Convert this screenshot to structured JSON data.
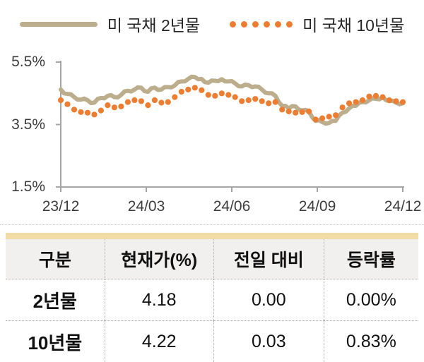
{
  "legend": {
    "series1_label": "미 국채 2년물",
    "series2_label": "미 국채 10년물"
  },
  "colors": {
    "series1": "#BCAD8C",
    "series2": "#ED7D31",
    "axis": "#A6A6A6",
    "table_accent": "#F0DCA4",
    "table_header_bg": "#F1F0EF",
    "dotted_border": "#A9A9A9",
    "text": "#1A1A1A"
  },
  "chart_data": {
    "type": "line",
    "title": "",
    "xlabel": "",
    "ylabel": "",
    "ylim": [
      1.5,
      5.5
    ],
    "grid": false,
    "legend_position": "top",
    "x_ticks": [
      "23/12",
      "24/03",
      "24/06",
      "24/09",
      "24/12"
    ],
    "y_ticks": [
      "5.5%",
      "3.5%",
      "1.5%"
    ],
    "y_tick_values": [
      5.5,
      3.5,
      1.5
    ],
    "series": [
      {
        "name": "미 국채 2년물",
        "style": "solid",
        "color": "#BCAD8C",
        "values": [
          4.62,
          4.5,
          4.48,
          4.47,
          4.38,
          4.3,
          4.3,
          4.33,
          4.28,
          4.19,
          4.2,
          4.32,
          4.35,
          4.34,
          4.42,
          4.44,
          4.38,
          4.37,
          4.45,
          4.56,
          4.58,
          4.56,
          4.62,
          4.69,
          4.68,
          4.57,
          4.55,
          4.66,
          4.68,
          4.61,
          4.62,
          4.7,
          4.7,
          4.69,
          4.75,
          4.86,
          4.88,
          4.88,
          4.96,
          5.03,
          5.02,
          4.95,
          4.96,
          4.86,
          4.84,
          4.91,
          4.9,
          4.89,
          4.95,
          4.88,
          4.88,
          4.89,
          4.82,
          4.73,
          4.72,
          4.78,
          4.76,
          4.7,
          4.72,
          4.71,
          4.62,
          4.52,
          4.5,
          4.5,
          4.42,
          4.22,
          4.1,
          4.1,
          4.02,
          4.09,
          4.08,
          3.98,
          3.95,
          3.97,
          3.92,
          3.73,
          3.62,
          3.64,
          3.58,
          3.53,
          3.55,
          3.62,
          3.62,
          3.79,
          3.88,
          3.91,
          4.02,
          4.1,
          4.1,
          4.2,
          4.22,
          4.21,
          4.28,
          4.34,
          4.32,
          4.31,
          4.38,
          4.28,
          4.25,
          4.26,
          4.2,
          4.15,
          4.18
        ]
      },
      {
        "name": "미 국채 10년물",
        "style": "dotted",
        "color": "#ED7D31",
        "values": [
          4.28,
          4.15,
          3.98,
          3.9,
          3.88,
          3.82,
          3.95,
          4.12,
          4.05,
          4.08,
          4.22,
          4.28,
          4.25,
          4.12,
          4.28,
          4.2,
          4.22,
          4.38,
          4.55,
          4.62,
          4.68,
          4.6,
          4.45,
          4.42,
          4.5,
          4.45,
          4.38,
          4.25,
          4.28,
          4.32,
          4.25,
          4.18,
          4.22,
          3.98,
          3.92,
          3.88,
          3.9,
          3.92,
          3.66,
          3.7,
          3.75,
          3.8,
          4.05,
          4.18,
          4.22,
          4.28,
          4.4,
          4.42,
          4.38,
          4.28,
          4.25,
          4.22
        ]
      }
    ]
  },
  "table": {
    "headers": [
      "구분",
      "현재가(%)",
      "전일 대비",
      "등락률"
    ],
    "rows": [
      {
        "label": "2년물",
        "cells": [
          "4.18",
          "0.00",
          "0.00%"
        ]
      },
      {
        "label": "10년물",
        "cells": [
          "4.22",
          "0.03",
          "0.83%"
        ]
      }
    ]
  }
}
